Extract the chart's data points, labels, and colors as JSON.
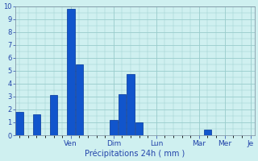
{
  "bar_values": [
    1.8,
    0,
    1.6,
    0,
    3.1,
    0,
    9.8,
    5.5,
    0,
    0,
    0,
    1.2,
    3.2,
    4.75,
    1.0,
    0,
    0,
    0,
    0,
    0,
    0,
    0,
    0.45,
    0,
    0,
    0,
    0,
    0
  ],
  "n_bars": 28,
  "day_tick_positions": [
    6,
    11,
    16,
    21,
    24,
    27
  ],
  "day_labels": [
    "Ven",
    "Dim",
    "Lun",
    "Mar",
    "Mer",
    "Je"
  ],
  "xlabel": "Précipitations 24h ( mm )",
  "ylim": [
    0,
    10
  ],
  "yticks": [
    0,
    1,
    2,
    3,
    4,
    5,
    6,
    7,
    8,
    9,
    10
  ],
  "bar_color": "#1155cc",
  "bar_edge_color": "#003399",
  "background_color": "#cff0f0",
  "grid_color": "#99cccc",
  "tick_label_color": "#2244aa",
  "xlabel_color": "#2244aa",
  "figsize": [
    3.2,
    2.0
  ],
  "dpi": 100
}
